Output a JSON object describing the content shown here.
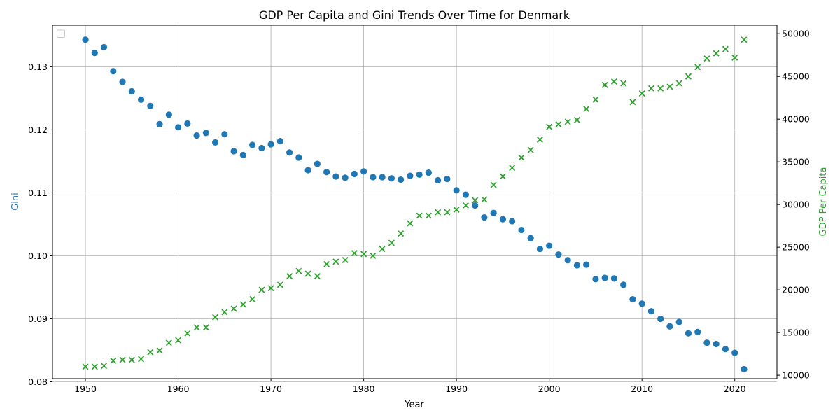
{
  "chart_data": {
    "type": "scatter",
    "title": "GDP Per Capita and Gini Trends Over Time for Denmark",
    "xlabel": "Year",
    "ylabel_left": "Gini",
    "ylabel_right": "GDP Per Capita",
    "xlim": [
      1946.45,
      2024.55
    ],
    "ylim_left": [
      0.0805,
      0.1366
    ],
    "ylim_right": [
      9600,
      51000
    ],
    "x_ticks": [
      1950,
      1960,
      1970,
      1980,
      1990,
      2000,
      2010,
      2020
    ],
    "y_left_ticks": [
      "0.08",
      "0.09",
      "0.10",
      "0.11",
      "0.12",
      "0.13"
    ],
    "y_left_tick_values": [
      0.08,
      0.09,
      0.1,
      0.11,
      0.12,
      0.13
    ],
    "y_right_ticks": [
      "10000",
      "15000",
      "20000",
      "25000",
      "30000",
      "35000",
      "40000",
      "45000",
      "50000"
    ],
    "y_right_tick_values": [
      10000,
      15000,
      20000,
      25000,
      30000,
      35000,
      40000,
      45000,
      50000
    ],
    "grid": true,
    "legend": "top-left (empty)",
    "colors": {
      "gini": "#1f77b4",
      "gdp": "#2ca02c"
    },
    "x": [
      1950,
      1951,
      1952,
      1953,
      1954,
      1955,
      1956,
      1957,
      1958,
      1959,
      1960,
      1961,
      1962,
      1963,
      1964,
      1965,
      1966,
      1967,
      1968,
      1969,
      1970,
      1971,
      1972,
      1973,
      1974,
      1975,
      1976,
      1977,
      1978,
      1979,
      1980,
      1981,
      1982,
      1983,
      1984,
      1985,
      1986,
      1987,
      1988,
      1989,
      1990,
      1991,
      1992,
      1993,
      1994,
      1995,
      1996,
      1997,
      1998,
      1999,
      2000,
      2001,
      2002,
      2003,
      2004,
      2005,
      2006,
      2007,
      2008,
      2009,
      2010,
      2011,
      2012,
      2013,
      2014,
      2015,
      2016,
      2017,
      2018,
      2019,
      2020,
      2021
    ],
    "series": [
      {
        "axis": "left",
        "marker": "circle",
        "values": [
          0.1343,
          0.1322,
          0.1331,
          0.1293,
          0.1276,
          0.1261,
          0.1248,
          0.1238,
          0.1209,
          0.1224,
          0.1204,
          0.121,
          0.1191,
          0.1195,
          0.118,
          0.1193,
          0.1166,
          0.116,
          0.1176,
          0.1171,
          0.1177,
          0.1182,
          0.1164,
          0.1156,
          0.1136,
          0.1146,
          0.1133,
          0.1126,
          0.1124,
          0.113,
          0.1134,
          0.1125,
          0.1125,
          0.1123,
          0.1121,
          0.1127,
          0.1129,
          0.1132,
          0.112,
          0.1122,
          0.1104,
          0.1097,
          0.108,
          0.1061,
          0.1068,
          0.1058,
          0.1055,
          0.1041,
          0.1028,
          0.1011,
          0.1016,
          0.1002,
          0.0993,
          0.0985,
          0.0986,
          0.0963,
          0.0965,
          0.0964,
          0.0954,
          0.0931,
          0.0924,
          0.0912,
          0.09,
          0.0888,
          0.0895,
          0.0877,
          0.0879,
          0.0862,
          0.086,
          0.0852,
          0.0846,
          0.082
        ]
      },
      {
        "axis": "right",
        "marker": "x",
        "values": [
          11000,
          11000,
          11100,
          11700,
          11800,
          11800,
          11900,
          12700,
          12900,
          13800,
          14100,
          14900,
          15600,
          15600,
          16800,
          17400,
          17800,
          18300,
          18900,
          20000,
          20200,
          20600,
          21600,
          22200,
          21900,
          21600,
          23000,
          23300,
          23500,
          24300,
          24200,
          24000,
          24800,
          25500,
          26600,
          27800,
          28700,
          28700,
          29100,
          29100,
          29400,
          29900,
          30500,
          30600,
          32300,
          33300,
          34300,
          35500,
          36400,
          37600,
          39100,
          39400,
          39700,
          39900,
          41200,
          42300,
          44000,
          44400,
          44200,
          42000,
          43000,
          43600,
          43600,
          43800,
          44200,
          45000,
          46100,
          47100,
          47700,
          48200,
          47200,
          49300
        ]
      }
    ]
  }
}
